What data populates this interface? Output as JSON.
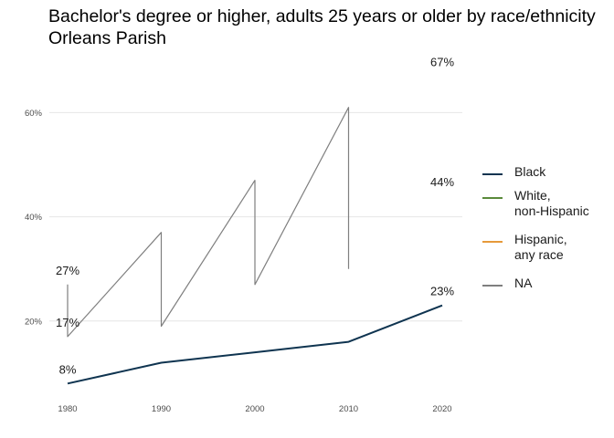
{
  "title": "Bachelor's degree or higher, adults 25 years or older by race/ethnicity\nOrleans Parish",
  "chart_data": {
    "type": "line",
    "title": "Bachelor's degree or higher, adults 25 years or older by race/ethnicity\nOrleans Parish",
    "xlabel": "",
    "ylabel": "",
    "x_ticks": [
      "1980",
      "1990",
      "2000",
      "2010",
      "2020"
    ],
    "y_ticks": [
      "20%",
      "40%",
      "60%"
    ],
    "xlim": [
      1980,
      2020
    ],
    "ylim": [
      0.03,
      0.685
    ],
    "grid": "horizontal",
    "legend_position": "right",
    "series": [
      {
        "name": "Black",
        "color": "#0f3450",
        "points": [
          [
            1980,
            0.08
          ],
          [
            1990,
            0.12
          ],
          [
            2000,
            0.14
          ],
          [
            2010,
            0.16
          ],
          [
            2020,
            0.23
          ]
        ]
      },
      {
        "name": "White,\nnon-Hispanic",
        "color": "#5a8a3a",
        "points": []
      },
      {
        "name": "Hispanic,\nany race",
        "color": "#e69a3a",
        "points": []
      },
      {
        "name": "NA",
        "color": "#7f7f7f",
        "points": [
          [
            1980,
            0.27
          ],
          [
            1980,
            0.17
          ],
          [
            1990,
            0.37
          ],
          [
            1990,
            0.19
          ],
          [
            2000,
            0.47
          ],
          [
            2000,
            0.27
          ],
          [
            2010,
            0.61
          ],
          [
            2010,
            0.3
          ]
        ]
      }
    ],
    "data_labels": [
      {
        "x": 1980,
        "y": 0.08,
        "text": "8%"
      },
      {
        "x": 1980,
        "y": 0.17,
        "text": "17%"
      },
      {
        "x": 1980,
        "y": 0.27,
        "text": "27%"
      },
      {
        "x": 2020,
        "y": 0.23,
        "text": "23%"
      },
      {
        "x": 2020,
        "y": 0.44,
        "text": "44%"
      },
      {
        "x": 2020,
        "y": 0.67,
        "text": "67%"
      }
    ]
  }
}
